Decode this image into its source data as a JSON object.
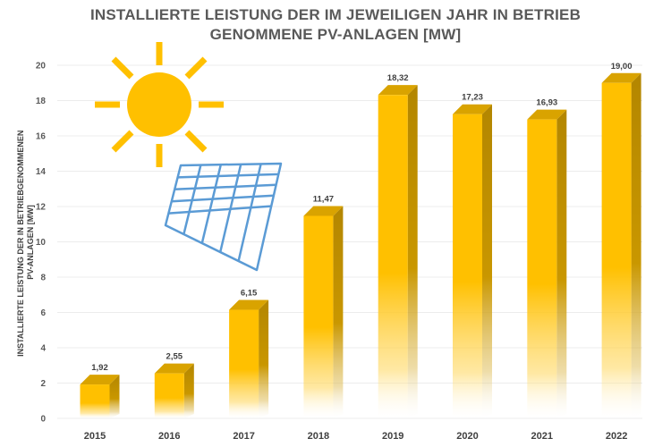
{
  "chart_data": {
    "type": "bar",
    "title_lines": [
      "INSTALLIERTE LEISTUNG DER IM JEWEILIGEN JAHR IN BETRIEB",
      "GENOMMENE PV-ANLAGEN [MW]"
    ],
    "ylabel_lines": [
      "INSTALLIERTE LEISTUNG DER IN BETRIEBGENOMMENEN",
      "PV-ANLAGEN [MW]"
    ],
    "xlabel": "",
    "categories": [
      "2015",
      "2016",
      "2017",
      "2018",
      "2019",
      "2020",
      "2021",
      "2022"
    ],
    "values": [
      1.92,
      2.55,
      6.15,
      11.47,
      18.32,
      17.23,
      16.93,
      19.0
    ],
    "data_labels": [
      "1,92",
      "2,55",
      "6,15",
      "11,47",
      "18,32",
      "17,23",
      "16,93",
      "19,00"
    ],
    "ylim": [
      0,
      20
    ],
    "yticks": [
      0,
      2,
      4,
      6,
      8,
      10,
      12,
      14,
      16,
      18,
      20
    ],
    "grid": true,
    "legend": "none",
    "colors": {
      "bar_front": "#ffc000",
      "bar_side": "#b38600",
      "bar_top": "#d9a300",
      "grid": "#ececec",
      "sun": "#ffc000",
      "panel": "#5b9bd5"
    },
    "decorations": [
      "sun-icon",
      "solar-panel-icon"
    ]
  }
}
